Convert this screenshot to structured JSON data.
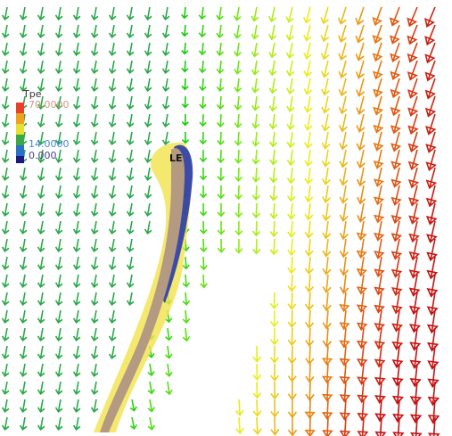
{
  "legend": {
    "title": "Tpe",
    "labels": [
      "70.0000",
      "14.0000",
      "0.000"
    ]
  },
  "annotations": [
    "LE"
  ]
}
